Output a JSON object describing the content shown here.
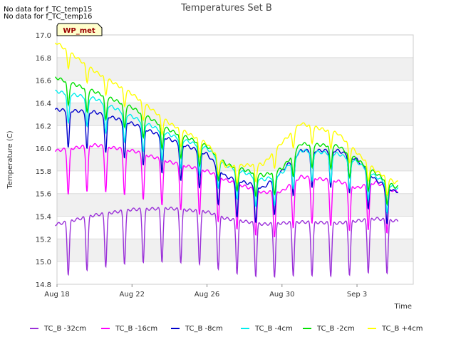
{
  "notes": [
    "No data for f_TC_temp15",
    "No data for f_TC_temp16"
  ],
  "site_badge": "WP_met",
  "chart_data": {
    "type": "line",
    "title": "Temperatures Set B",
    "xlabel": "Time",
    "ylabel": "Temperature (C)",
    "xlim": [
      "2023-08-18",
      "2023-09-06"
    ],
    "ylim": [
      14.8,
      17.0
    ],
    "y_ticks": [
      14.8,
      15.0,
      15.2,
      15.4,
      15.6,
      15.8,
      16.0,
      16.2,
      16.4,
      16.6,
      16.8,
      17.0
    ],
    "x_ticks": [
      {
        "date": "2023-08-18",
        "label": "Aug 18"
      },
      {
        "date": "2023-08-22",
        "label": "Aug 22"
      },
      {
        "date": "2023-08-26",
        "label": "Aug 26"
      },
      {
        "date": "2023-08-30",
        "label": "Aug 30"
      },
      {
        "date": "2023-09-03",
        "label": "Sep 3"
      }
    ],
    "grid": "horizontal alternating bands",
    "legend_position": "bottom",
    "x_dates": [
      "2023-08-18",
      "2023-08-20",
      "2023-08-22",
      "2023-08-24",
      "2023-08-26",
      "2023-08-27",
      "2023-08-29",
      "2023-08-30",
      "2023-08-31",
      "2023-09-02",
      "2023-09-03",
      "2023-09-04",
      "2023-09-05"
    ],
    "series": [
      {
        "name": "TC_B -32cm",
        "color": "#9b30d9",
        "values": [
          15.33,
          15.41,
          15.46,
          15.47,
          15.44,
          15.38,
          15.33,
          15.34,
          15.35,
          15.34,
          15.36,
          15.38,
          15.36
        ]
      },
      {
        "name": "TC_B -16cm",
        "color": "#ff00ff",
        "values": [
          15.98,
          16.03,
          15.98,
          15.88,
          15.8,
          15.72,
          15.61,
          15.62,
          15.75,
          15.71,
          15.65,
          15.7,
          15.62
        ]
      },
      {
        "name": "TC_B -8cm",
        "color": "#0000cc",
        "values": [
          16.34,
          16.32,
          16.22,
          16.08,
          15.95,
          15.75,
          15.65,
          15.8,
          15.98,
          15.98,
          15.9,
          15.72,
          15.62
        ]
      },
      {
        "name": "TC_B -4cm",
        "color": "#00eeee",
        "values": [
          16.5,
          16.44,
          16.28,
          16.12,
          16.0,
          15.85,
          15.72,
          15.78,
          15.98,
          15.95,
          15.88,
          15.75,
          15.65
        ]
      },
      {
        "name": "TC_B -2cm",
        "color": "#00e000",
        "values": [
          16.62,
          16.5,
          16.36,
          16.16,
          16.02,
          15.86,
          15.76,
          15.82,
          16.04,
          16.02,
          15.9,
          15.78,
          15.66
        ]
      },
      {
        "name": "TC_B +4cm",
        "color": "#ffff00",
        "values": [
          16.93,
          16.68,
          16.48,
          16.22,
          16.04,
          15.84,
          15.86,
          16.05,
          16.22,
          16.13,
          15.96,
          15.8,
          15.7
        ]
      }
    ]
  }
}
